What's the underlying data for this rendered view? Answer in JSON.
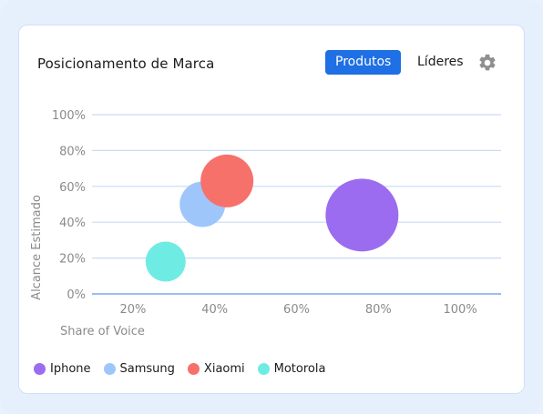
{
  "header": {
    "title": "Posicionamento de Marca",
    "tabs": [
      {
        "label": "Produtos",
        "active": true
      },
      {
        "label": "Líderes",
        "active": false
      }
    ],
    "settings_icon": "gear-icon"
  },
  "colors": {
    "accent": "#1f6fe5",
    "grid": "#c9dcf6"
  },
  "chart_data": {
    "type": "scatter",
    "subtype": "bubble",
    "xlabel": "Share of Voice",
    "ylabel": "Alcance Estimado",
    "xlim": [
      10,
      110
    ],
    "ylim": [
      0,
      100
    ],
    "x_ticks": [
      "20%",
      "40%",
      "60%",
      "80%",
      "100%"
    ],
    "x_tick_values": [
      20,
      40,
      60,
      80,
      100
    ],
    "y_ticks": [
      "100%",
      "80%",
      "60%",
      "40%",
      "20%",
      "0%"
    ],
    "y_tick_values": [
      100,
      80,
      60,
      40,
      20,
      0
    ],
    "grid": true,
    "legend_position": "bottom-left",
    "series": [
      {
        "name": "Iphone",
        "x": 76,
        "y": 44,
        "size": 40,
        "color": "#9b6cf0"
      },
      {
        "name": "Samsung",
        "x": 37,
        "y": 50,
        "size": 25,
        "color": "#9fc6fb"
      },
      {
        "name": "Xiaomi",
        "x": 43,
        "y": 63,
        "size": 29,
        "color": "#f7716b"
      },
      {
        "name": "Motorola",
        "x": 28,
        "y": 18,
        "size": 22,
        "color": "#6eece4"
      }
    ]
  }
}
